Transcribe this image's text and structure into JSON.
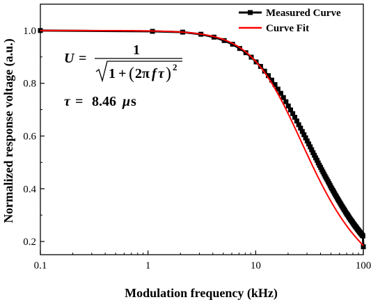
{
  "chart_data": {
    "type": "line",
    "xlabel": "Modulation frequency (kHz)",
    "ylabel": "Normalized response voltage (a.u.)",
    "x_scale": "log",
    "xlim": [
      0.1,
      100
    ],
    "ylim": [
      0.15,
      1.1
    ],
    "x_ticks": [
      0.1,
      1,
      10,
      100
    ],
    "x_tick_labels": [
      "0.1",
      "1",
      "10",
      "100"
    ],
    "y_ticks": [
      0.2,
      0.4,
      0.6,
      0.8,
      1.0
    ],
    "y_tick_labels": [
      "0.2",
      "0.4",
      "0.6",
      "0.8",
      "1.0"
    ],
    "legend_position": "top-right",
    "grid": false,
    "series": [
      {
        "name": "Measured Curve",
        "color": "#000000",
        "marker": "square",
        "x": [
          0.1,
          1.1,
          2.1,
          3.1,
          4.1,
          5.1,
          6.1,
          7.1,
          8.1,
          9.1,
          10.1,
          11.1,
          12.1,
          13.1,
          14.1,
          15.1,
          16.1,
          17.1,
          18.1,
          19.1,
          20.1,
          21.1,
          22.1,
          23.1,
          24.1,
          25.1,
          26.1,
          27.1,
          28.1,
          29.1,
          30.1,
          31.1,
          32.1,
          33.1,
          34.1,
          35.1,
          36.1,
          37.1,
          38.1,
          39.1,
          40.1,
          41.1,
          42.1,
          43.1,
          44.1,
          45.1,
          46.1,
          47.1,
          48.1,
          49.1,
          50.1,
          51.1,
          52.1,
          53.1,
          54.1,
          55.1,
          56.1,
          57.1,
          58.1,
          59.1,
          60.1,
          61.1,
          62.1,
          63.1,
          64.1,
          65.1,
          66.1,
          67.1,
          68.1,
          69.1,
          70.1,
          71.1,
          72.1,
          73.1,
          74.1,
          75.1,
          76.1,
          77.1,
          78.1,
          79.1,
          80.1,
          81.1,
          82.1,
          83.1,
          84.1,
          85.1,
          86.1,
          87.1,
          88.1,
          89.1,
          90.1,
          91.1,
          92.1,
          93.1,
          94.1,
          95.1,
          96.1,
          97.1,
          98.1,
          99.1,
          100
        ],
        "y": [
          1.0,
          0.997,
          0.994,
          0.986,
          0.975,
          0.962,
          0.948,
          0.932,
          0.916,
          0.899,
          0.881,
          0.864,
          0.846,
          0.829,
          0.812,
          0.795,
          0.778,
          0.762,
          0.746,
          0.73,
          0.714,
          0.699,
          0.685,
          0.671,
          0.657,
          0.643,
          0.63,
          0.617,
          0.605,
          0.593,
          0.581,
          0.57,
          0.559,
          0.548,
          0.537,
          0.527,
          0.517,
          0.508,
          0.498,
          0.489,
          0.481,
          0.472,
          0.464,
          0.456,
          0.448,
          0.441,
          0.434,
          0.427,
          0.42,
          0.413,
          0.406,
          0.4,
          0.394,
          0.388,
          0.382,
          0.376,
          0.371,
          0.365,
          0.36,
          0.355,
          0.35,
          0.345,
          0.34,
          0.335,
          0.331,
          0.326,
          0.322,
          0.318,
          0.313,
          0.309,
          0.305,
          0.302,
          0.298,
          0.294,
          0.29,
          0.287,
          0.283,
          0.28,
          0.277,
          0.274,
          0.27,
          0.267,
          0.264,
          0.261,
          0.258,
          0.256,
          0.253,
          0.25,
          0.247,
          0.245,
          0.242,
          0.24,
          0.237,
          0.235,
          0.232,
          0.23,
          0.228,
          0.225,
          0.223,
          0.221,
          0.18
        ]
      },
      {
        "name": "Curve Fit",
        "color": "#ff0000",
        "tau_us": 8.46,
        "formula": "U = 1 / sqrt(1 + (2 pi f tau)^2)"
      }
    ],
    "annotations": {
      "equation_lhs": "U",
      "equation_eq": "=",
      "equation_num": "1",
      "equation_one": "1",
      "equation_plus": "+",
      "equation_2pi": "2π",
      "equation_f": "f",
      "equation_tau": "τ",
      "equation_exp": "2",
      "tau_symbol": "τ",
      "tau_eq": "=",
      "tau_value": "8.46",
      "tau_unit_mu": "μ",
      "tau_unit_s": "s"
    }
  }
}
